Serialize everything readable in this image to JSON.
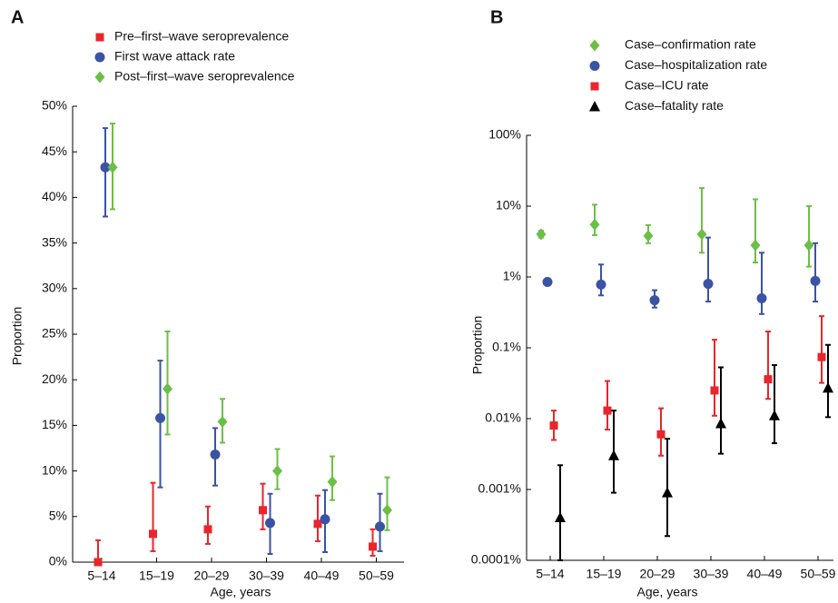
{
  "chart_data": [
    {
      "type": "scatter",
      "panel": "A",
      "y_label": "Proportion",
      "x_label": "Age, years",
      "categories": [
        "5–14",
        "15–19",
        "20–29",
        "30–39",
        "40–49",
        "50–59"
      ],
      "ylim": [
        0,
        50
      ],
      "yticks": [
        {
          "value": 0,
          "label": "0%"
        },
        {
          "value": 5,
          "label": "5%"
        },
        {
          "value": 10,
          "label": "10%"
        },
        {
          "value": 15,
          "label": "15%"
        },
        {
          "value": 20,
          "label": "20%"
        },
        {
          "value": 25,
          "label": "25%"
        },
        {
          "value": 30,
          "label": "30%"
        },
        {
          "value": 35,
          "label": "35%"
        },
        {
          "value": 40,
          "label": "40%"
        },
        {
          "value": 45,
          "label": "45%"
        },
        {
          "value": 50,
          "label": "50%"
        }
      ],
      "log_scale": false,
      "series": [
        {
          "name": "Pre–first–wave seroprevalence",
          "color": "#e8262b",
          "marker": "square",
          "values": [
            0,
            3.1,
            3.6,
            5.7,
            4.2,
            1.7
          ],
          "lower": [
            0,
            1.2,
            2.0,
            3.6,
            2.3,
            0.7
          ],
          "upper": [
            2.4,
            8.7,
            6.1,
            8.6,
            7.3,
            3.6
          ]
        },
        {
          "name": "First wave attack rate",
          "color": "#3a53a4",
          "marker": "circle",
          "values": [
            43.3,
            15.8,
            11.8,
            4.3,
            4.7,
            3.9
          ],
          "lower": [
            37.9,
            8.2,
            8.4,
            0.9,
            1.1,
            1.2
          ],
          "upper": [
            47.6,
            22.1,
            14.7,
            7.5,
            7.9,
            7.5
          ]
        },
        {
          "name": "Post–first–wave seroprevalence",
          "color": "#6cbf45",
          "marker": "diamond",
          "values": [
            43.3,
            19.0,
            15.4,
            10.0,
            8.8,
            5.7
          ],
          "lower": [
            38.7,
            14.0,
            13.1,
            8.0,
            6.8,
            3.5
          ],
          "upper": [
            48.1,
            25.3,
            17.9,
            12.4,
            11.6,
            9.3
          ]
        }
      ]
    },
    {
      "type": "scatter",
      "panel": "B",
      "y_label": "Proportion",
      "x_label": "Age, years",
      "categories": [
        "5–14",
        "15–19",
        "20–29",
        "30–39",
        "40–49",
        "50–59"
      ],
      "ylim": [
        0.0001,
        100
      ],
      "yticks": [
        {
          "value": 0.0001,
          "label": "0.0001%"
        },
        {
          "value": 0.001,
          "label": "0.001%"
        },
        {
          "value": 0.01,
          "label": "0.01%"
        },
        {
          "value": 0.1,
          "label": "0.1%"
        },
        {
          "value": 1,
          "label": "1%"
        },
        {
          "value": 10,
          "label": "10%"
        },
        {
          "value": 100,
          "label": "100%"
        }
      ],
      "log_scale": true,
      "series": [
        {
          "name": "Case–confirmation rate",
          "color": "#6cbf45",
          "marker": "diamond",
          "values": [
            4.0,
            5.5,
            3.8,
            4.0,
            2.8,
            2.8
          ],
          "lower": [
            3.6,
            3.9,
            3.0,
            2.2,
            1.6,
            1.4
          ],
          "upper": [
            4.5,
            10.5,
            5.4,
            18,
            12.5,
            10
          ]
        },
        {
          "name": "Case–hospitalization rate",
          "color": "#3a53a4",
          "marker": "circle",
          "values": [
            0.85,
            0.78,
            0.47,
            0.8,
            0.5,
            0.88
          ],
          "lower": [
            0.78,
            0.55,
            0.37,
            0.45,
            0.3,
            0.45
          ],
          "upper": [
            0.95,
            1.5,
            0.65,
            3.6,
            2.2,
            3.0
          ]
        },
        {
          "name": "Case–ICU rate",
          "color": "#e8262b",
          "marker": "square",
          "values": [
            0.008,
            0.013,
            0.006,
            0.025,
            0.036,
            0.074
          ],
          "lower": [
            0.005,
            0.007,
            0.003,
            0.011,
            0.019,
            0.032
          ],
          "upper": [
            0.013,
            0.034,
            0.014,
            0.13,
            0.17,
            0.28
          ]
        },
        {
          "name": "Case–fatality rate",
          "color": "#000000",
          "marker": "triangle",
          "values": [
            0.0004,
            0.003,
            0.0009,
            0.0085,
            0.011,
            0.027
          ],
          "lower": [
            0.0001,
            0.0009,
            0.00022,
            0.0032,
            0.0045,
            0.0105
          ],
          "upper": [
            0.0022,
            0.013,
            0.0052,
            0.053,
            0.057,
            0.11
          ]
        }
      ]
    }
  ]
}
